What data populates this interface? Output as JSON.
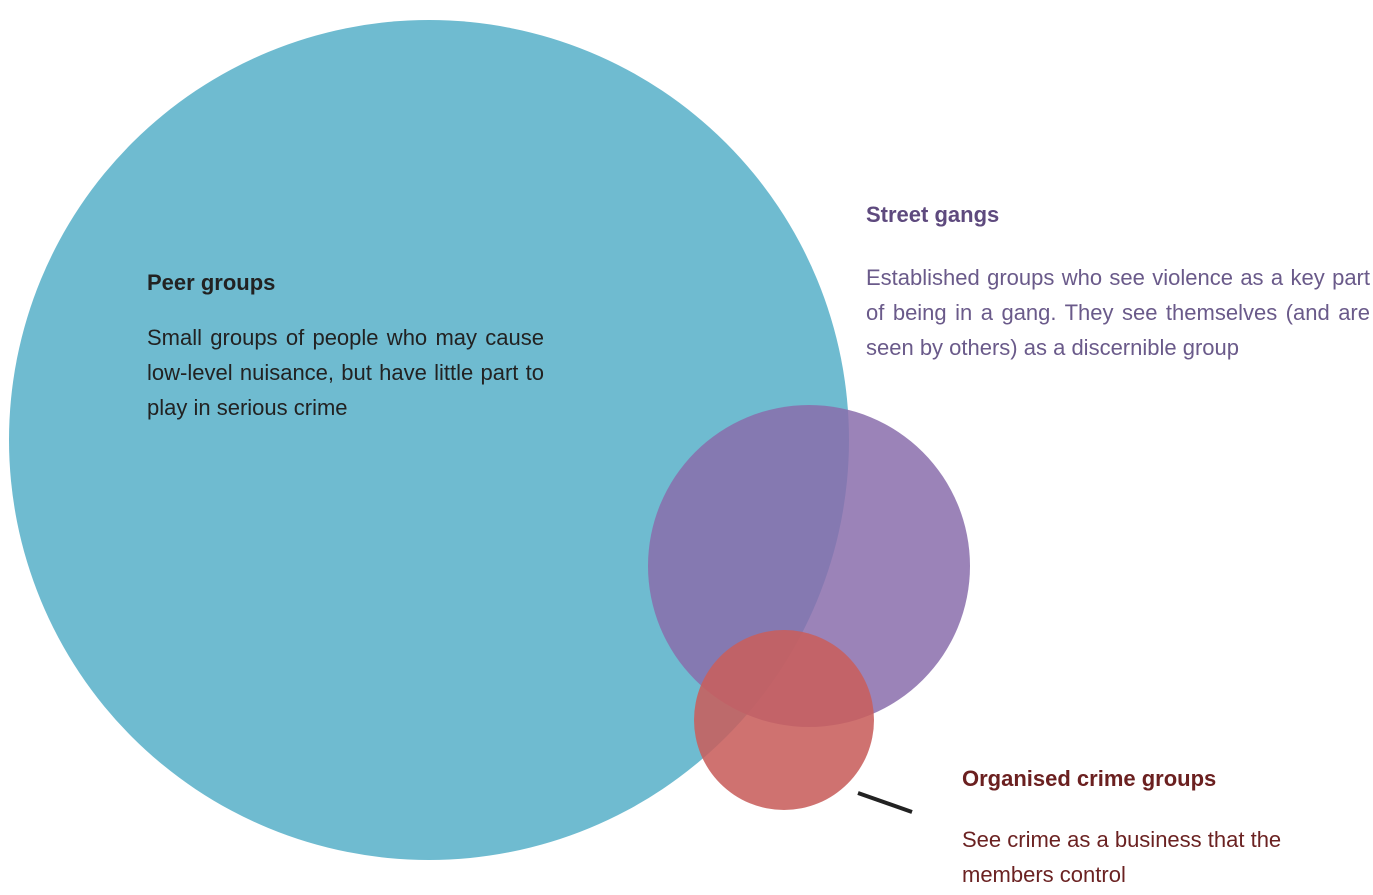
{
  "nodes": [
    {
      "title": "Peer groups",
      "text": "Small groups of people who may cause low-level nuisance, but have little part to play in serious crime"
    },
    {
      "title": "Street gangs",
      "text": "Established groups who see violence as a key part of being in a gang. They see themselves (and are seen by others) as a discernible group"
    },
    {
      "title": "Organised crime groups",
      "text": "See crime as a business that the members control"
    }
  ]
}
